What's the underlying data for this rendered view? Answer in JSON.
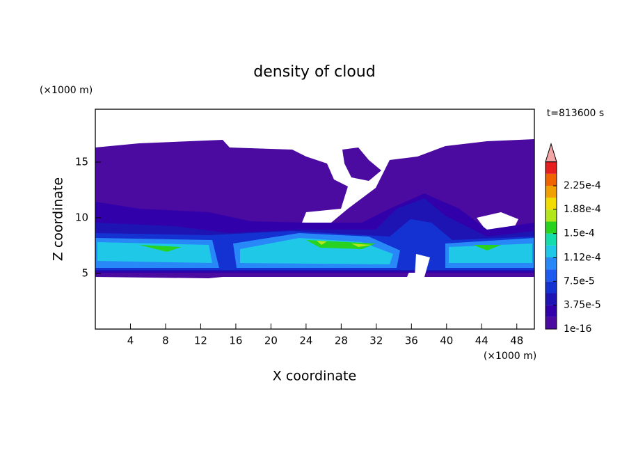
{
  "chart_data": {
    "type": "contour",
    "title": "density of cloud",
    "x_label": "X coordinate",
    "y_label": "Z coordinate",
    "x_unit": "(×1000 m)",
    "y_unit": "(×1000 m)",
    "annotation": "t=813600 s",
    "xlim": [
      0,
      50
    ],
    "xticks": [
      4,
      8,
      12,
      16,
      20,
      24,
      28,
      32,
      36,
      40,
      44,
      48
    ],
    "ylim": [
      0,
      20
    ],
    "yticks": [
      5,
      10,
      15
    ],
    "colorbar": {
      "ticks": [
        1e-16,
        {
          "value": 3.75e-05,
          "label": "3.75e-5"
        },
        {
          "value": 7.5e-05,
          "label": "7.5e-5"
        },
        {
          "value": 0.000112,
          "label": "1.12e-4"
        },
        {
          "value": 0.00015,
          "label": "1.5e-4"
        },
        {
          "value": 0.000188,
          "label": "1.88e-4"
        },
        {
          "value": 0.000225,
          "label": "2.25e-4"
        }
      ],
      "colors": [
        "#4b0aa0",
        "#3200aa",
        "#1e14b4",
        "#1432d2",
        "#1e5af0",
        "#2888f8",
        "#1ec8e6",
        "#14dcaa",
        "#28d21e",
        "#b4e61e",
        "#f0dc00",
        "#f0a000",
        "#f06400",
        "#e61e1e"
      ],
      "extend_color": "#f4a6a6"
    }
  }
}
